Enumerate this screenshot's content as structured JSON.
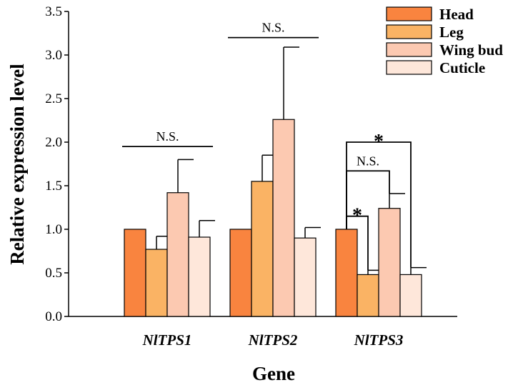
{
  "chart_data": {
    "type": "bar",
    "xlabel": "Gene",
    "ylabel": "Relative expression level",
    "ylim": [
      0,
      3.5
    ],
    "yticks": [
      "0.0",
      "0.5",
      "1.0",
      "1.5",
      "2.0",
      "2.5",
      "3.0",
      "3.5"
    ],
    "categories": [
      "NlTPS1",
      "NlTPS2",
      "NlTPS3"
    ],
    "series": [
      {
        "name": "Head",
        "color": "#F9843F",
        "values": [
          1.0,
          1.0,
          1.0
        ],
        "errors": [
          0,
          0,
          0
        ]
      },
      {
        "name": "Leg",
        "color": "#FAB364",
        "values": [
          0.77,
          1.55,
          0.48
        ],
        "errors": [
          0.15,
          0.3,
          0.05
        ]
      },
      {
        "name": "Wing bud",
        "color": "#FCC9B1",
        "values": [
          1.42,
          2.26,
          1.24
        ],
        "errors": [
          0.38,
          0.83,
          0.17
        ]
      },
      {
        "name": "Cuticle",
        "color": "#FEE7DA",
        "values": [
          0.91,
          0.9,
          0.48
        ],
        "errors": [
          0.19,
          0.12,
          0.08
        ]
      }
    ],
    "legend_position": "top-right",
    "grid": false,
    "annotations": [
      {
        "category": "NlTPS1",
        "type": "line",
        "text": "N.S.",
        "y": 1.95
      },
      {
        "category": "NlTPS2",
        "type": "line",
        "text": "N.S.",
        "y": 3.2
      },
      {
        "category": "NlTPS3",
        "type": "bracket",
        "from": "Head",
        "to": "Cuticle",
        "text": "*",
        "y": 2.0
      },
      {
        "category": "NlTPS3",
        "type": "bracket",
        "from": "Head",
        "to": "Wing bud",
        "text": "N.S.",
        "y": 1.67
      },
      {
        "category": "NlTPS3",
        "type": "bracket",
        "from": "Head",
        "to": "Leg",
        "text": "*",
        "y": 1.15
      }
    ]
  }
}
